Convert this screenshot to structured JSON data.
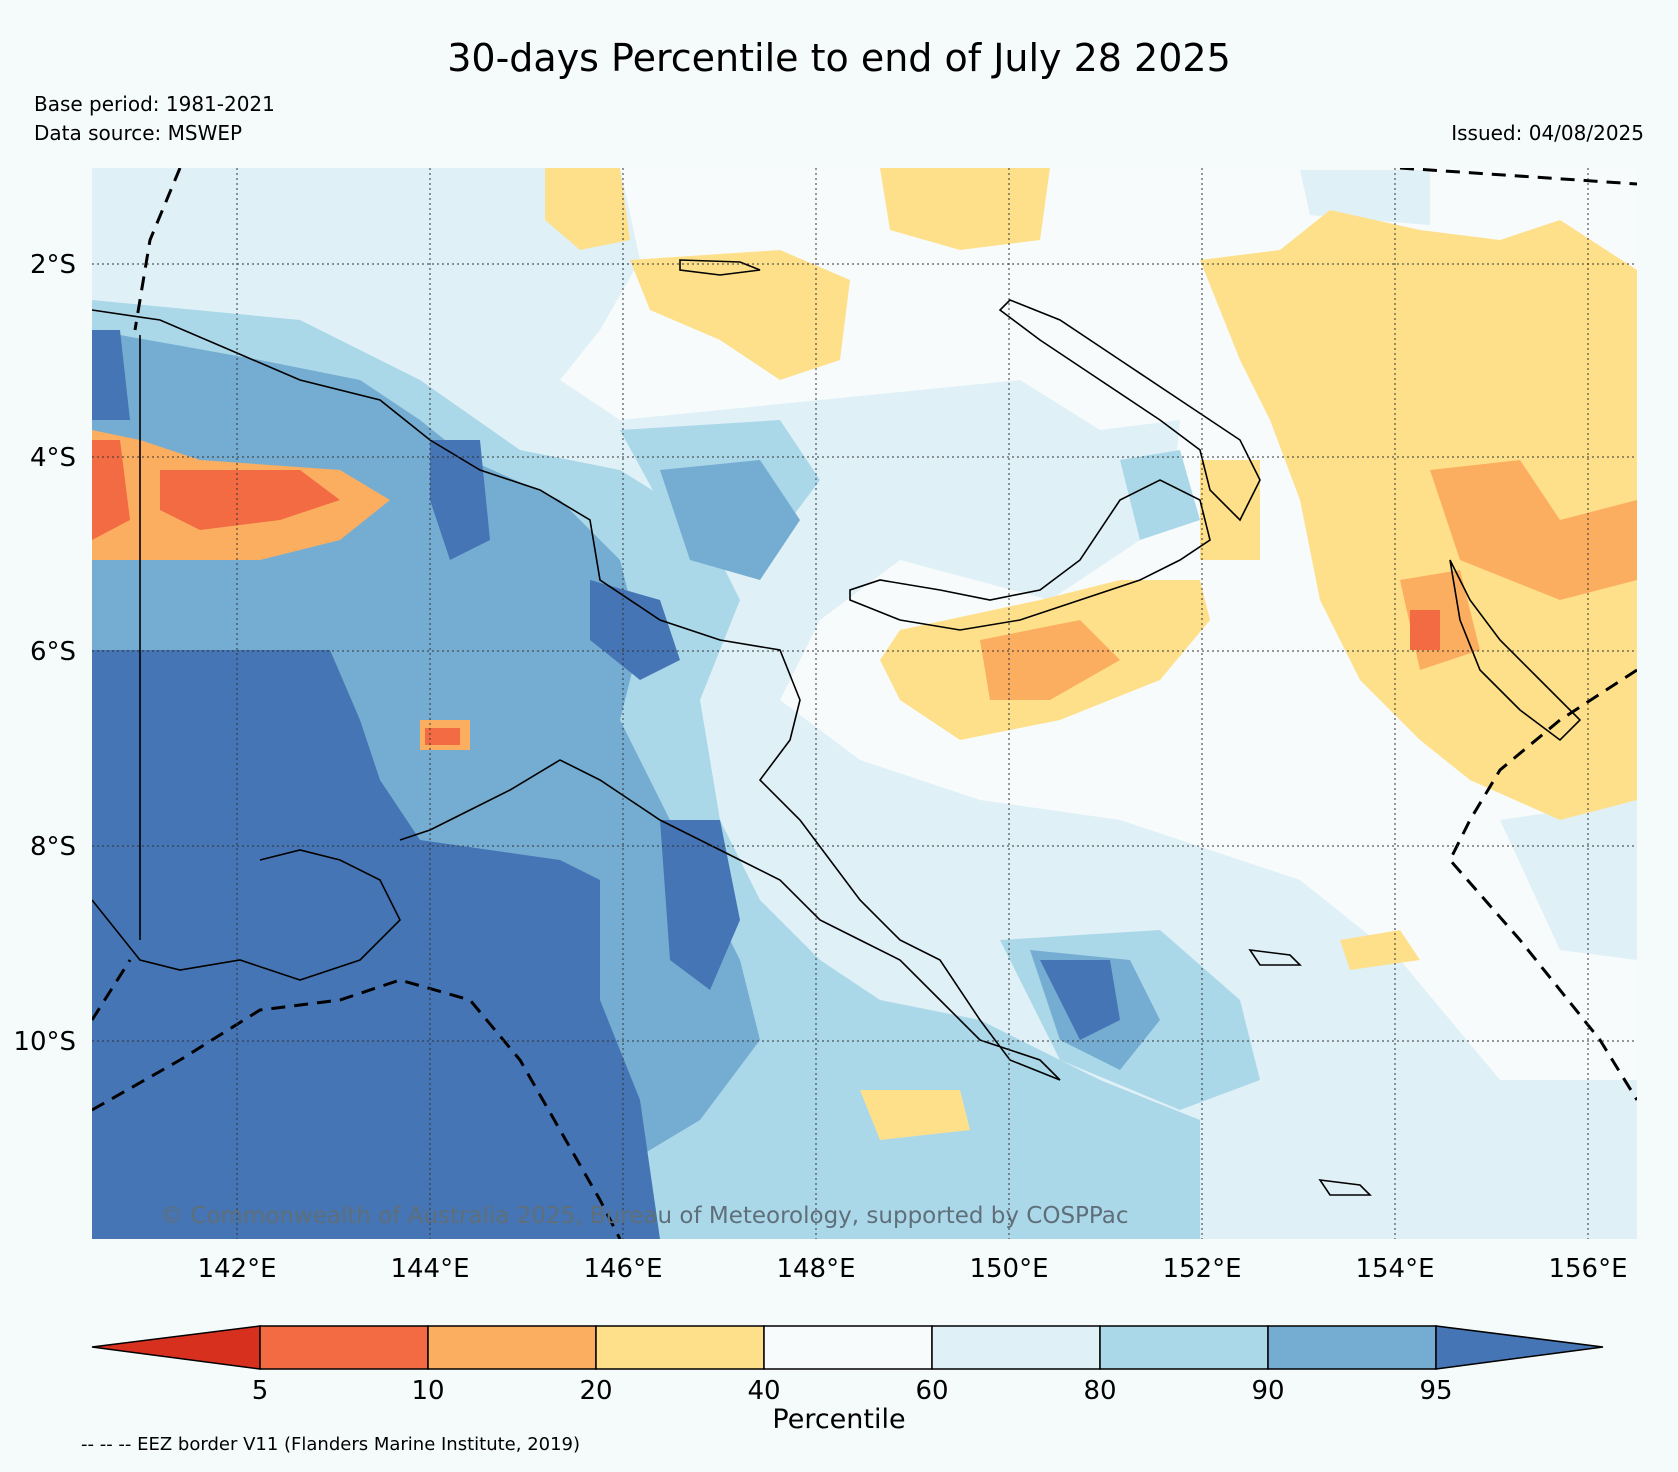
{
  "title": "30-days Percentile to end of July 28 2025",
  "base_period": "Base period: 1981-2021",
  "data_source": "Data source: MSWEP",
  "issued": "Issued: 04/08/2025",
  "copyright": "© Commonwealth of Australia 2025, Bureau of Meteorology, supported by COSPPac",
  "map": {
    "lon_range": [
      140.5,
      156.5
    ],
    "lat_range": [
      -11.6,
      -0.9
    ],
    "lon_ticks": [
      "142°E",
      "144°E",
      "146°E",
      "148°E",
      "150°E",
      "152°E",
      "154°E",
      "156°E"
    ],
    "lat_ticks": [
      "2°S",
      "4°S",
      "6°S",
      "8°S",
      "10°S"
    ],
    "gridlines": "dotted"
  },
  "colorbar": {
    "label": "Percentile",
    "tick_labels": [
      "5",
      "10",
      "20",
      "40",
      "60",
      "80",
      "90",
      "95"
    ],
    "colors": {
      "below_5": "#d7301f",
      "5_10": "#f26b43",
      "10_20": "#fcae60",
      "20_40": "#fee08b",
      "40_60": "#f7fbfc",
      "60_80": "#dff0f6",
      "80_90": "#abd8e9",
      "90_95": "#74add1",
      "above_95": "#4575b4"
    }
  },
  "eez_note": "-- -- -- EEZ border V11 (Flanders Marine Institute, 2019)"
}
